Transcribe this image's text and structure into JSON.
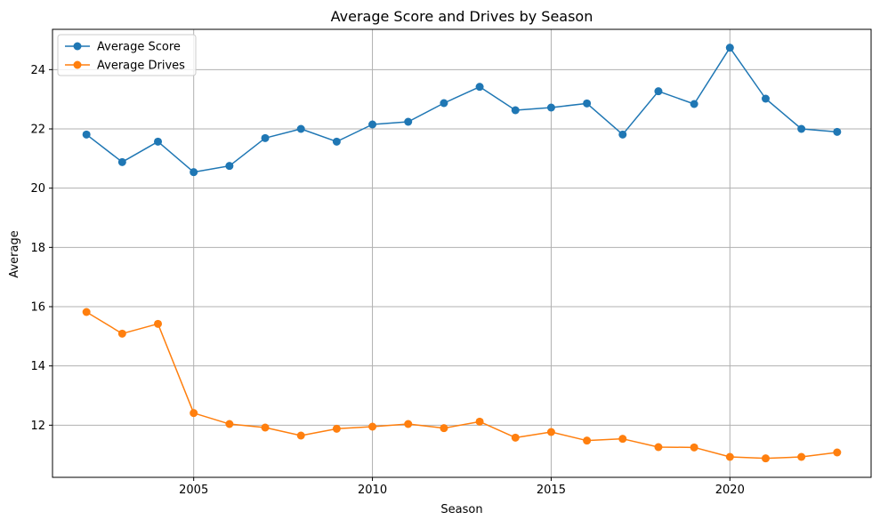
{
  "chart_data": {
    "type": "line",
    "title": "Average Score and Drives by Season",
    "xlabel": "Season",
    "ylabel": "Average",
    "xlim": [
      2001.05,
      2023.95
    ],
    "ylim": [
      10.24,
      25.36
    ],
    "xticks": [
      2005,
      2010,
      2015,
      2020
    ],
    "yticks": [
      12,
      14,
      16,
      18,
      20,
      22,
      24
    ],
    "grid": true,
    "legend_position": "top-left",
    "x": [
      2002,
      2003,
      2004,
      2005,
      2006,
      2007,
      2008,
      2009,
      2010,
      2011,
      2012,
      2013,
      2014,
      2015,
      2016,
      2017,
      2018,
      2019,
      2020,
      2021,
      2022,
      2023
    ],
    "series": [
      {
        "name": "Average Score",
        "color": "#1f77b4",
        "values": [
          21.81,
          20.88,
          21.57,
          20.54,
          20.75,
          21.69,
          22.0,
          21.57,
          22.15,
          22.24,
          22.87,
          23.42,
          22.63,
          22.72,
          22.86,
          21.81,
          23.27,
          22.84,
          24.74,
          23.02,
          22.0,
          21.9
        ]
      },
      {
        "name": "Average Drives",
        "color": "#ff7f0e",
        "values": [
          15.82,
          15.09,
          15.42,
          12.41,
          12.04,
          11.92,
          11.65,
          11.88,
          11.95,
          12.04,
          11.9,
          12.12,
          11.58,
          11.77,
          11.48,
          11.54,
          11.26,
          11.25,
          10.93,
          10.88,
          10.93,
          11.08
        ]
      }
    ]
  }
}
